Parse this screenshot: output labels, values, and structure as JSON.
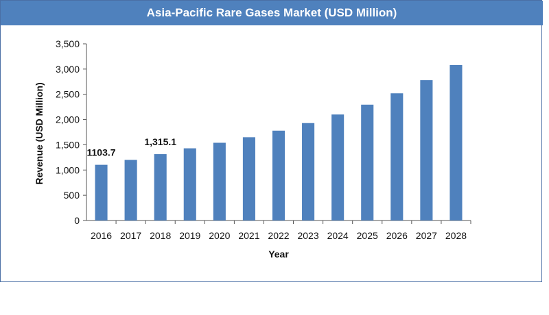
{
  "chart_data": {
    "type": "bar",
    "title": "Asia-Pacific Rare Gases Market (USD Million)",
    "xlabel": "Year",
    "ylabel": "Revenue (USD Million)",
    "ylim": [
      0,
      3500
    ],
    "yticks": [
      "0",
      "500",
      "1,000",
      "1,500",
      "2,000",
      "2,500",
      "3,000",
      "3,500"
    ],
    "grid": false,
    "bar_color": "#4f81bd",
    "categories": [
      "2016",
      "2017",
      "2018",
      "2019",
      "2020",
      "2021",
      "2022",
      "2023",
      "2024",
      "2025",
      "2026",
      "2027",
      "2028"
    ],
    "values": [
      1103.7,
      1200,
      1315.1,
      1430,
      1540,
      1650,
      1780,
      1930,
      2100,
      2295,
      2520,
      2780,
      3080
    ],
    "data_labels": [
      {
        "index": 0,
        "text": "1103.7"
      },
      {
        "index": 2,
        "text": "1,315.1"
      }
    ]
  }
}
